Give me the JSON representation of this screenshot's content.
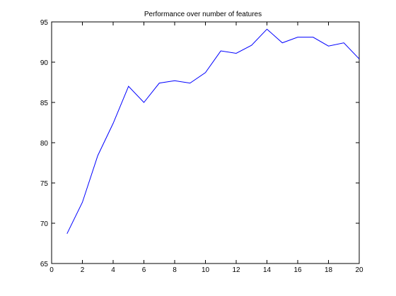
{
  "chart_data": {
    "type": "line",
    "title": "Performance over number of features",
    "xlabel": "",
    "ylabel": "",
    "xlim": [
      0,
      20
    ],
    "ylim": [
      65,
      95
    ],
    "xticks": [
      0,
      2,
      4,
      6,
      8,
      10,
      12,
      14,
      16,
      18,
      20
    ],
    "yticks": [
      65,
      70,
      75,
      80,
      85,
      90,
      95
    ],
    "grid": false,
    "series": [
      {
        "color": "#0000ff",
        "x": [
          1,
          2,
          3,
          4,
          5,
          6,
          7,
          8,
          9,
          10,
          11,
          12,
          13,
          14,
          15,
          16,
          17,
          18,
          19,
          20
        ],
        "y": [
          68.7,
          72.6,
          78.4,
          82.4,
          87.0,
          85.0,
          87.4,
          87.7,
          87.4,
          88.7,
          91.4,
          91.1,
          92.1,
          94.1,
          92.4,
          93.1,
          93.1,
          92.0,
          92.4,
          90.4
        ]
      }
    ]
  }
}
